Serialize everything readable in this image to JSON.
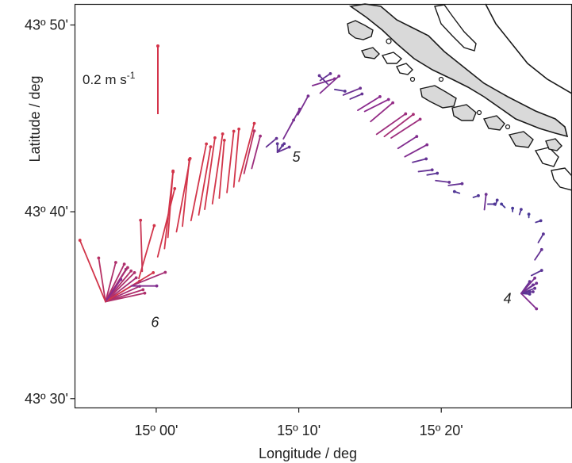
{
  "axes": {
    "xlabel": "Longitude / deg",
    "ylabel": "Latitude / deg",
    "xticks": [
      {
        "value": 15.0,
        "label": "15º 00'"
      },
      {
        "value": 15.1667,
        "label": "15º 10'"
      },
      {
        "value": 15.3333,
        "label": "15º 20'"
      }
    ],
    "yticks": [
      {
        "value": 43.5,
        "label": "43º 30'"
      },
      {
        "value": 43.6667,
        "label": "43º 40'"
      },
      {
        "value": 43.8333,
        "label": "43º 50'"
      }
    ],
    "xlim": [
      14.905,
      15.4857
    ],
    "ylim": [
      43.4917,
      43.8517
    ]
  },
  "scale": {
    "label": "0.2 m s",
    "label_sup": "-1",
    "color": "#d4334a"
  },
  "colors": {
    "fast": "#d2354a",
    "mid": "#8b2b8e",
    "slow": "#3e3b99",
    "land": "#d9d9d9",
    "coast": "#1a1a1a"
  },
  "stations": [
    {
      "name": "4",
      "lon": 15.4265,
      "lat": 43.5915
    },
    {
      "name": "5",
      "lon": 15.1545,
      "lat": 43.7225
    },
    {
      "name": "6",
      "lon": 14.9707,
      "lat": 43.5722
    }
  ],
  "chart_data": {
    "type": "vector map",
    "title": "",
    "xlabel": "Longitude / deg",
    "ylabel": "Latitude / deg",
    "xlim": [
      14.905,
      15.4857
    ],
    "ylim": [
      43.4917,
      43.8517
    ],
    "scale_vector": {
      "speed_ms": 0.2
    },
    "vectors": [
      {
        "lon": 14.9407,
        "lat": 43.5865,
        "u": -0.02,
        "v": 0.128,
        "speed": 0.13
      },
      {
        "lon": 14.9407,
        "lat": 43.5865,
        "u": 0.03,
        "v": 0.115,
        "speed": 0.12
      },
      {
        "lon": 14.9407,
        "lat": 43.5865,
        "u": 0.055,
        "v": 0.11,
        "speed": 0.12
      },
      {
        "lon": 14.9407,
        "lat": 43.5865,
        "u": 0.065,
        "v": 0.1,
        "speed": 0.12
      },
      {
        "lon": 14.9407,
        "lat": 43.5865,
        "u": 0.075,
        "v": 0.09,
        "speed": 0.12
      },
      {
        "lon": 14.9407,
        "lat": 43.5865,
        "u": 0.085,
        "v": 0.085,
        "speed": 0.12
      },
      {
        "lon": 14.9407,
        "lat": 43.5865,
        "u": 0.09,
        "v": 0.07,
        "speed": 0.11
      },
      {
        "lon": 14.9407,
        "lat": 43.5865,
        "u": 0.1,
        "v": 0.06,
        "speed": 0.12
      },
      {
        "lon": 14.9407,
        "lat": 43.5865,
        "u": 0.1,
        "v": 0.045,
        "speed": 0.11
      },
      {
        "lon": 14.9407,
        "lat": 43.5865,
        "u": 0.11,
        "v": 0.035,
        "speed": 0.12
      },
      {
        "lon": 14.9407,
        "lat": 43.5865,
        "u": 0.115,
        "v": 0.025,
        "speed": 0.12
      },
      {
        "lon": 14.9407,
        "lat": 43.5865,
        "u": 0.14,
        "v": 0.085,
        "speed": 0.16
      },
      {
        "lon": 14.9407,
        "lat": 43.5865,
        "u": 0.06,
        "v": 0.095,
        "speed": 0.11
      },
      {
        "lon": 14.9407,
        "lat": 43.5865,
        "u": 0.045,
        "v": 0.065,
        "speed": 0.08
      },
      {
        "lon": 14.9407,
        "lat": 43.5865,
        "u": -0.075,
        "v": 0.18,
        "speed": 0.19
      },
      {
        "lon": 14.9707,
        "lat": 43.6005,
        "u": 0.1,
        "v": 0.04,
        "speed": 0.11
      },
      {
        "lon": 14.9707,
        "lat": 43.6005,
        "u": 0.075,
        "v": 0.0,
        "speed": 0.07
      },
      {
        "lon": 14.9797,
        "lat": 43.6072,
        "u": 0.045,
        "v": 0.155,
        "speed": 0.16
      },
      {
        "lon": 14.9837,
        "lat": 43.6135,
        "u": -0.005,
        "v": 0.15,
        "speed": 0.15
      },
      {
        "lon": 15.0017,
        "lat": 43.6265,
        "u": 0.05,
        "v": 0.2,
        "speed": 0.21
      },
      {
        "lon": 15.0097,
        "lat": 43.6338,
        "u": 0.025,
        "v": 0.225,
        "speed": 0.23
      },
      {
        "lon": 15.0137,
        "lat": 43.6438,
        "u": 0.015,
        "v": 0.195,
        "speed": 0.2
      },
      {
        "lon": 15.0237,
        "lat": 43.6488,
        "u": 0.04,
        "v": 0.215,
        "speed": 0.22
      },
      {
        "lon": 15.0307,
        "lat": 43.6538,
        "u": 0.02,
        "v": 0.195,
        "speed": 0.2
      },
      {
        "lon": 15.0407,
        "lat": 43.6588,
        "u": 0.045,
        "v": 0.225,
        "speed": 0.23
      },
      {
        "lon": 15.0497,
        "lat": 43.6638,
        "u": 0.035,
        "v": 0.2,
        "speed": 0.2
      },
      {
        "lon": 15.0567,
        "lat": 43.6688,
        "u": 0.03,
        "v": 0.21,
        "speed": 0.21
      },
      {
        "lon": 15.0657,
        "lat": 43.6738,
        "u": 0.03,
        "v": 0.205,
        "speed": 0.21
      },
      {
        "lon": 15.0737,
        "lat": 43.6788,
        "u": 0.015,
        "v": 0.17,
        "speed": 0.17
      },
      {
        "lon": 15.0827,
        "lat": 43.6838,
        "u": 0.02,
        "v": 0.18,
        "speed": 0.18
      },
      {
        "lon": 15.0907,
        "lat": 43.6888,
        "u": 0.015,
        "v": 0.17,
        "speed": 0.17
      },
      {
        "lon": 15.0967,
        "lat": 43.6938,
        "u": 0.045,
        "v": 0.17,
        "speed": 0.18
      },
      {
        "lon": 15.1027,
        "lat": 43.7008,
        "u": 0.03,
        "v": 0.125,
        "speed": 0.13
      },
      {
        "lon": 15.1117,
        "lat": 43.7053,
        "u": 0.025,
        "v": 0.095,
        "speed": 0.1
      },
      {
        "lon": 15.1287,
        "lat": 43.7245,
        "u": 0.03,
        "v": 0.025,
        "speed": 0.04
      },
      {
        "lon": 15.1417,
        "lat": 43.7198,
        "u": 0.0,
        "v": 0.025,
        "speed": 0.03
      },
      {
        "lon": 15.1417,
        "lat": 43.7198,
        "u": 0.02,
        "v": 0.025,
        "speed": 0.03
      },
      {
        "lon": 15.1417,
        "lat": 43.7198,
        "u": 0.015,
        "v": 0.02,
        "speed": 0.03
      },
      {
        "lon": 15.1417,
        "lat": 43.7198,
        "u": 0.035,
        "v": 0.015,
        "speed": 0.04
      },
      {
        "lon": 15.1487,
        "lat": 43.7318,
        "u": 0.03,
        "v": 0.055,
        "speed": 0.06
      },
      {
        "lon": 15.1557,
        "lat": 43.7415,
        "u": 0.03,
        "v": 0.055,
        "speed": 0.06
      },
      {
        "lon": 15.1657,
        "lat": 43.7532,
        "u": 0.03,
        "v": 0.055,
        "speed": 0.06
      },
      {
        "lon": 15.1827,
        "lat": 43.7792,
        "u": 0.065,
        "v": 0.02,
        "speed": 0.07
      },
      {
        "lon": 15.1917,
        "lat": 43.7838,
        "u": 0.03,
        "v": 0.02,
        "speed": 0.04
      },
      {
        "lon": 15.2007,
        "lat": 43.7805,
        "u": -0.025,
        "v": 0.025,
        "speed": 0.04
      },
      {
        "lon": 15.1917,
        "lat": 43.7725,
        "u": 0.055,
        "v": 0.05,
        "speed": 0.07
      },
      {
        "lon": 15.2087,
        "lat": 43.7758,
        "u": 0.03,
        "v": -0.005,
        "speed": 0.03
      },
      {
        "lon": 15.2187,
        "lat": 43.7708,
        "u": 0.05,
        "v": 0.02,
        "speed": 0.05
      },
      {
        "lon": 15.2267,
        "lat": 43.7672,
        "u": 0.035,
        "v": 0.015,
        "speed": 0.04
      },
      {
        "lon": 15.2357,
        "lat": 43.7572,
        "u": 0.065,
        "v": 0.04,
        "speed": 0.08
      },
      {
        "lon": 15.2437,
        "lat": 43.7562,
        "u": 0.07,
        "v": 0.035,
        "speed": 0.08
      },
      {
        "lon": 15.2507,
        "lat": 43.7472,
        "u": 0.065,
        "v": 0.055,
        "speed": 0.09
      },
      {
        "lon": 15.2577,
        "lat": 43.7358,
        "u": 0.085,
        "v": 0.06,
        "speed": 0.1
      },
      {
        "lon": 15.2667,
        "lat": 43.7338,
        "u": 0.085,
        "v": 0.065,
        "speed": 0.11
      },
      {
        "lon": 15.2747,
        "lat": 43.7325,
        "u": 0.085,
        "v": 0.055,
        "speed": 0.1
      },
      {
        "lon": 15.2827,
        "lat": 43.7232,
        "u": 0.055,
        "v": 0.035,
        "speed": 0.07
      },
      {
        "lon": 15.2907,
        "lat": 43.7158,
        "u": 0.065,
        "v": 0.035,
        "speed": 0.07
      },
      {
        "lon": 15.2997,
        "lat": 43.7108,
        "u": 0.04,
        "v": 0.01,
        "speed": 0.04
      },
      {
        "lon": 15.3067,
        "lat": 43.7025,
        "u": 0.04,
        "v": 0.005,
        "speed": 0.04
      },
      {
        "lon": 15.3167,
        "lat": 43.6995,
        "u": 0.03,
        "v": 0.005,
        "speed": 0.03
      },
      {
        "lon": 15.3267,
        "lat": 43.6945,
        "u": 0.04,
        "v": -0.005,
        "speed": 0.04
      },
      {
        "lon": 15.3417,
        "lat": 43.6902,
        "u": 0.04,
        "v": 0.005,
        "speed": 0.04
      },
      {
        "lon": 15.3547,
        "lat": 43.6832,
        "u": -0.015,
        "v": 0.005,
        "speed": 0.02
      },
      {
        "lon": 15.3707,
        "lat": 43.6795,
        "u": 0.015,
        "v": 0.005,
        "speed": 0.02
      },
      {
        "lon": 15.3837,
        "lat": 43.6685,
        "u": 0.005,
        "v": 0.045,
        "speed": 0.05
      },
      {
        "lon": 15.3877,
        "lat": 43.6735,
        "u": 0.02,
        "v": 0.0,
        "speed": 0.02
      },
      {
        "lon": 15.3967,
        "lat": 43.6725,
        "u": 0.005,
        "v": 0.015,
        "speed": 0.02
      },
      {
        "lon": 15.4077,
        "lat": 43.6705,
        "u": -0.01,
        "v": 0.01,
        "speed": 0.01
      },
      {
        "lon": 15.4167,
        "lat": 43.6668,
        "u": 0.0,
        "v": 0.01,
        "speed": 0.01
      },
      {
        "lon": 15.4247,
        "lat": 43.6642,
        "u": 0.005,
        "v": 0.015,
        "speed": 0.02
      },
      {
        "lon": 15.4357,
        "lat": 43.6615,
        "u": 0.0,
        "v": 0.01,
        "speed": 0.01
      },
      {
        "lon": 15.4437,
        "lat": 43.6572,
        "u": 0.015,
        "v": 0.005,
        "speed": 0.02
      },
      {
        "lon": 15.4467,
        "lat": 43.6392,
        "u": 0.015,
        "v": 0.025,
        "speed": 0.03
      },
      {
        "lon": 15.4427,
        "lat": 43.6238,
        "u": 0.02,
        "v": 0.03,
        "speed": 0.04
      },
      {
        "lon": 15.4387,
        "lat": 43.6098,
        "u": 0.03,
        "v": 0.015,
        "speed": 0.03
      },
      {
        "lon": 15.4267,
        "lat": 43.5938,
        "u": 0.025,
        "v": 0.035,
        "speed": 0.04
      },
      {
        "lon": 15.4267,
        "lat": 43.5938,
        "u": 0.035,
        "v": 0.025,
        "speed": 0.04
      },
      {
        "lon": 15.4267,
        "lat": 43.5938,
        "u": 0.04,
        "v": 0.015,
        "speed": 0.04
      },
      {
        "lon": 15.4267,
        "lat": 43.5938,
        "u": 0.035,
        "v": 0.005,
        "speed": 0.04
      },
      {
        "lon": 15.4267,
        "lat": 43.5938,
        "u": 0.045,
        "v": 0.03,
        "speed": 0.05
      },
      {
        "lon": 15.4267,
        "lat": 43.5938,
        "u": 0.04,
        "v": 0.045,
        "speed": 0.06
      },
      {
        "lon": 15.4267,
        "lat": 43.5938,
        "u": 0.025,
        "v": 0.005,
        "speed": 0.03
      },
      {
        "lon": 15.4267,
        "lat": 43.5938,
        "u": 0.025,
        "v": -0.002,
        "speed": 0.03
      },
      {
        "lon": 15.4267,
        "lat": 43.5938,
        "u": 0.045,
        "v": -0.045,
        "speed": 0.07
      }
    ]
  }
}
